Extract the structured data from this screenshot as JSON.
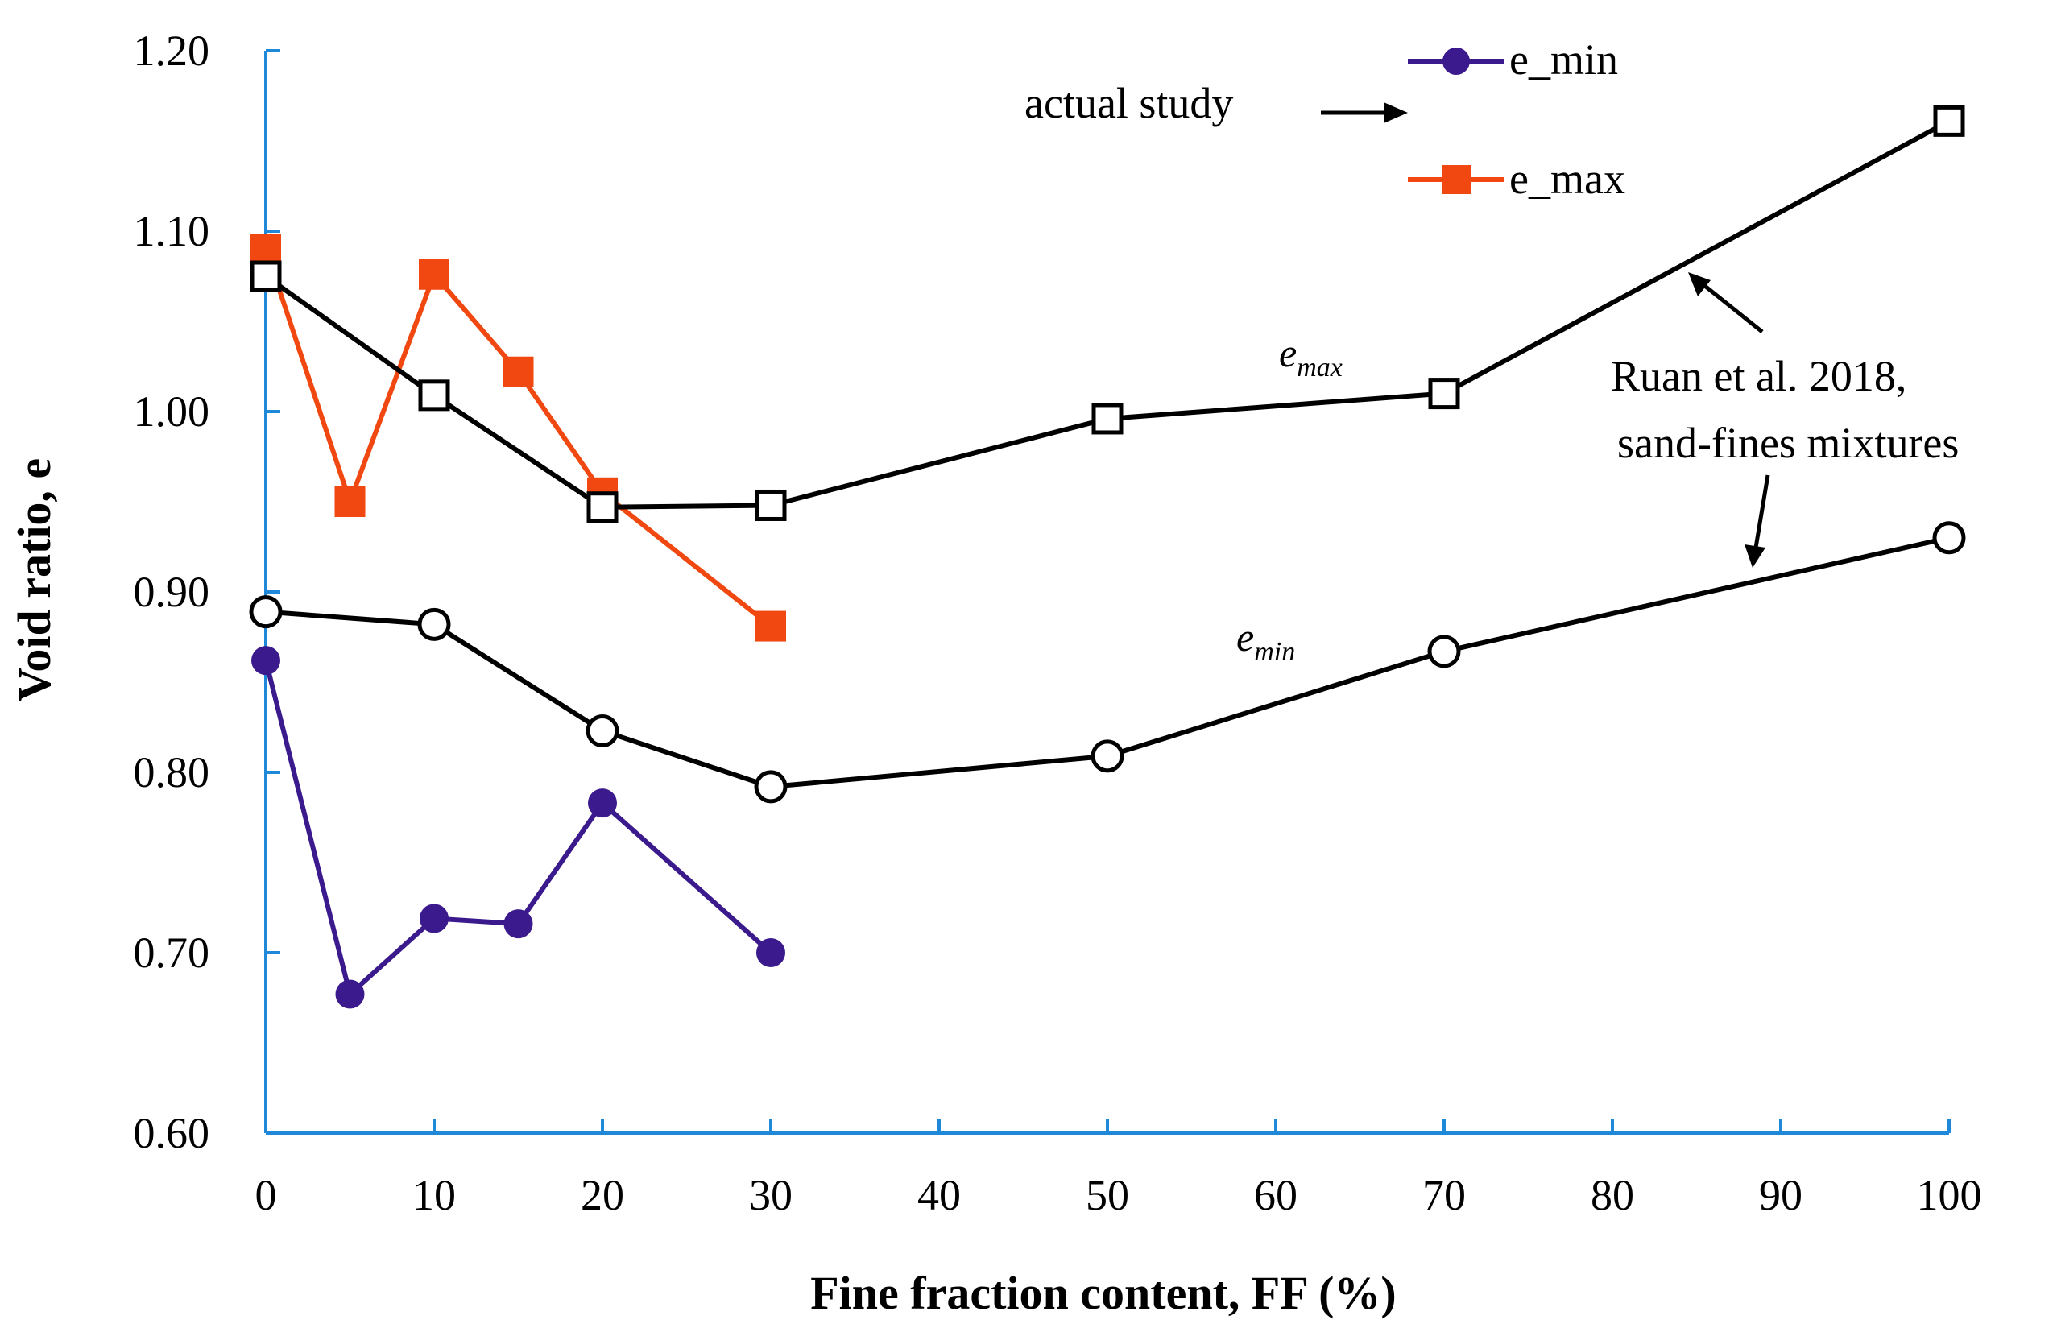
{
  "chart_data": {
    "type": "line",
    "title": "",
    "xlabel": "Fine fraction content, FF (%)",
    "ylabel": "Void ratio, e",
    "xlim": [
      0,
      100
    ],
    "ylim": [
      0.6,
      1.2
    ],
    "xticks": [
      0,
      10,
      20,
      30,
      40,
      50,
      60,
      70,
      80,
      90,
      100
    ],
    "xtick_labels": [
      "0",
      "10",
      "20",
      "30",
      "40",
      "50",
      "60",
      "70",
      "80",
      "90",
      "100"
    ],
    "yticks": [
      0.6,
      0.7,
      0.8,
      0.9,
      1.0,
      1.1,
      1.2
    ],
    "ytick_labels": [
      "0.60",
      "0.70",
      "0.80",
      "0.90",
      "1.00",
      "1.10",
      "1.20"
    ],
    "grid": false,
    "legend_position": "top-center",
    "series": [
      {
        "name": "e_min",
        "group": "actual study",
        "color": "#3a1a8c",
        "marker": "filled-circle",
        "x": [
          0,
          5,
          10,
          15,
          20,
          30
        ],
        "y": [
          0.862,
          0.677,
          0.719,
          0.716,
          0.783,
          0.7
        ]
      },
      {
        "name": "e_max",
        "group": "actual study",
        "color": "#f04810",
        "marker": "filled-square",
        "x": [
          0,
          5,
          10,
          15,
          20,
          30
        ],
        "y": [
          1.09,
          0.95,
          1.076,
          1.022,
          0.955,
          0.881
        ]
      },
      {
        "name": "e_max",
        "group": "Ruan et al. 2018, sand-fines mixtures",
        "color": "#000000",
        "marker": "open-square",
        "x": [
          0,
          10,
          20,
          30,
          50,
          70,
          100
        ],
        "y": [
          1.075,
          1.009,
          0.947,
          0.948,
          0.996,
          1.01,
          1.161
        ]
      },
      {
        "name": "e_min",
        "group": "Ruan et al. 2018, sand-fines mixtures",
        "color": "#000000",
        "marker": "open-circle",
        "x": [
          0,
          10,
          20,
          30,
          50,
          70,
          100
        ],
        "y": [
          0.889,
          0.882,
          0.823,
          0.792,
          0.809,
          0.867,
          0.93
        ]
      }
    ],
    "annotations": {
      "actual_study": "actual study",
      "ruan_line1": "Ruan et al. 2018,",
      "ruan_line2": "sand-fines mixtures",
      "emax_curve_base": "e",
      "emax_curve_sub": "max",
      "emin_curve_base": "e",
      "emin_curve_sub": "min"
    },
    "legend": [
      {
        "label": "e_min",
        "color": "#3a1a8c",
        "marker": "filled-circle"
      },
      {
        "label": "e_max",
        "color": "#f04810",
        "marker": "filled-square"
      }
    ],
    "colors": {
      "axis": "#1f88d8",
      "reference": "#000000"
    }
  }
}
